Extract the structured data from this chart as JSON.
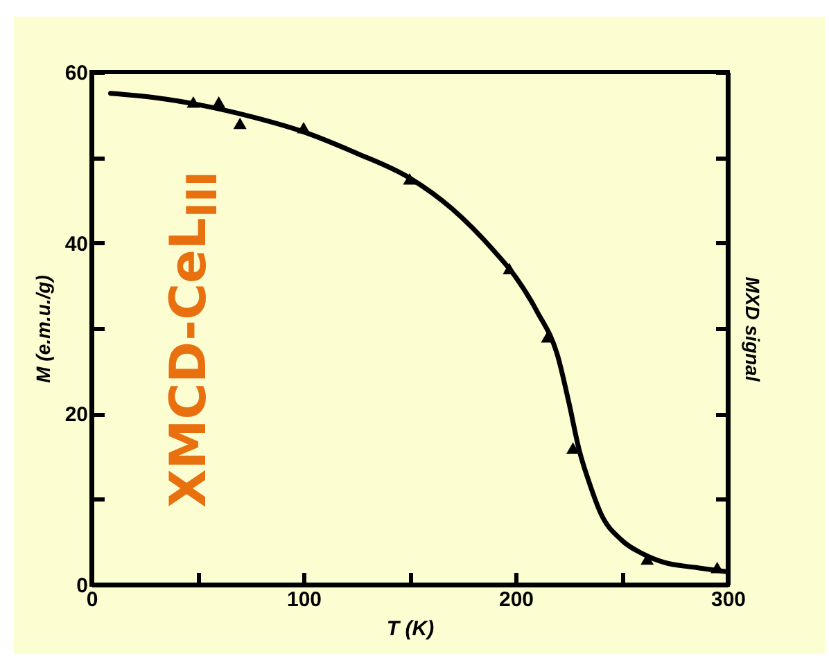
{
  "chart_data": {
    "type": "line",
    "xlabel": "T (K)",
    "ylabel": "M (e.m.u./g)",
    "y2label": "MXD signal",
    "xlim": [
      0,
      300
    ],
    "xticks": [
      0,
      {
        "value": 50,
        "label": null
      },
      100,
      {
        "value": 150,
        "label": null
      },
      200,
      {
        "value": 250,
        "label": null
      },
      300
    ],
    "ylim": [
      0,
      60
    ],
    "yticks": [
      0,
      {
        "value": 10,
        "label": null
      },
      20,
      {
        "value": 30,
        "label": null
      },
      40,
      {
        "value": 50,
        "label": null
      },
      60
    ],
    "grid": false,
    "annotations": [
      "XMCD-CeL$_{III}$"
    ],
    "series": [
      {
        "color": "#000000",
        "line_style": "solid",
        "x": [
          9,
          30,
          50,
          75,
          100,
          125,
          150,
          170,
          190,
          200,
          210,
          220,
          225,
          230,
          235,
          240,
          250,
          260,
          270,
          285,
          300
        ],
        "values": [
          57.5,
          57,
          56.2,
          54.8,
          53,
          50.5,
          47.6,
          44,
          39,
          36,
          32,
          26.6,
          21.4,
          15.7,
          11.7,
          8.4,
          5.2,
          3.6,
          2.6,
          2,
          1.5
        ]
      },
      {
        "type": "scatter",
        "color": "#000000",
        "marker": "triangle",
        "x": [
          48,
          60,
          70,
          100,
          150,
          197,
          215,
          227,
          262,
          295
        ],
        "values": [
          56.5,
          56.5,
          54,
          53.5,
          47.5,
          37,
          29,
          16,
          3,
          2
        ]
      }
    ]
  }
}
